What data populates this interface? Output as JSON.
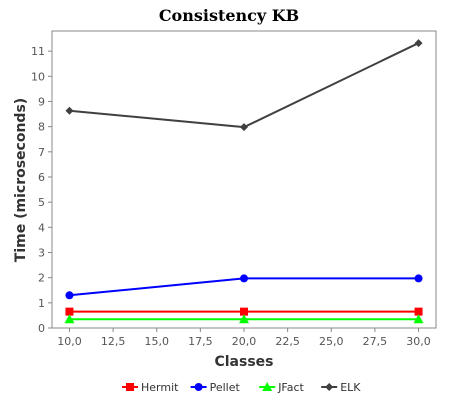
{
  "chart_data": {
    "type": "line",
    "title": "Consistency KB",
    "xlabel": "Classes",
    "ylabel": "Time (microseconds)",
    "xlim": [
      9.0,
      31.0
    ],
    "ylim": [
      0,
      11.8
    ],
    "x_ticks": [
      10.0,
      12.5,
      15.0,
      17.5,
      20.0,
      22.5,
      25.0,
      27.5,
      30.0
    ],
    "x_tick_labels": [
      "10,0",
      "12,5",
      "15,0",
      "17,5",
      "20,0",
      "22,5",
      "25,0",
      "27,5",
      "30,0"
    ],
    "y_ticks": [
      0,
      1,
      2,
      3,
      4,
      5,
      6,
      7,
      8,
      9,
      10,
      11
    ],
    "y_tick_labels": [
      "0",
      "1",
      "2",
      "3",
      "4",
      "5",
      "6",
      "7",
      "8",
      "9",
      "10",
      "11"
    ],
    "grid": false,
    "legend_position": "bottom",
    "x": [
      10,
      20,
      30
    ],
    "series": [
      {
        "name": "Hermit",
        "color": "#ff0000",
        "marker": "square",
        "values": [
          0.65,
          0.65,
          0.65
        ]
      },
      {
        "name": "Pellet",
        "color": "#0000ff",
        "marker": "circle",
        "values": [
          1.3,
          1.97,
          1.97
        ]
      },
      {
        "name": "JFact",
        "color": "#00ff00",
        "marker": "triangle",
        "values": [
          0.35,
          0.35,
          0.35
        ]
      },
      {
        "name": "ELK",
        "color": "#404040",
        "marker": "diamond",
        "values": [
          8.63,
          7.98,
          11.32
        ]
      }
    ]
  }
}
